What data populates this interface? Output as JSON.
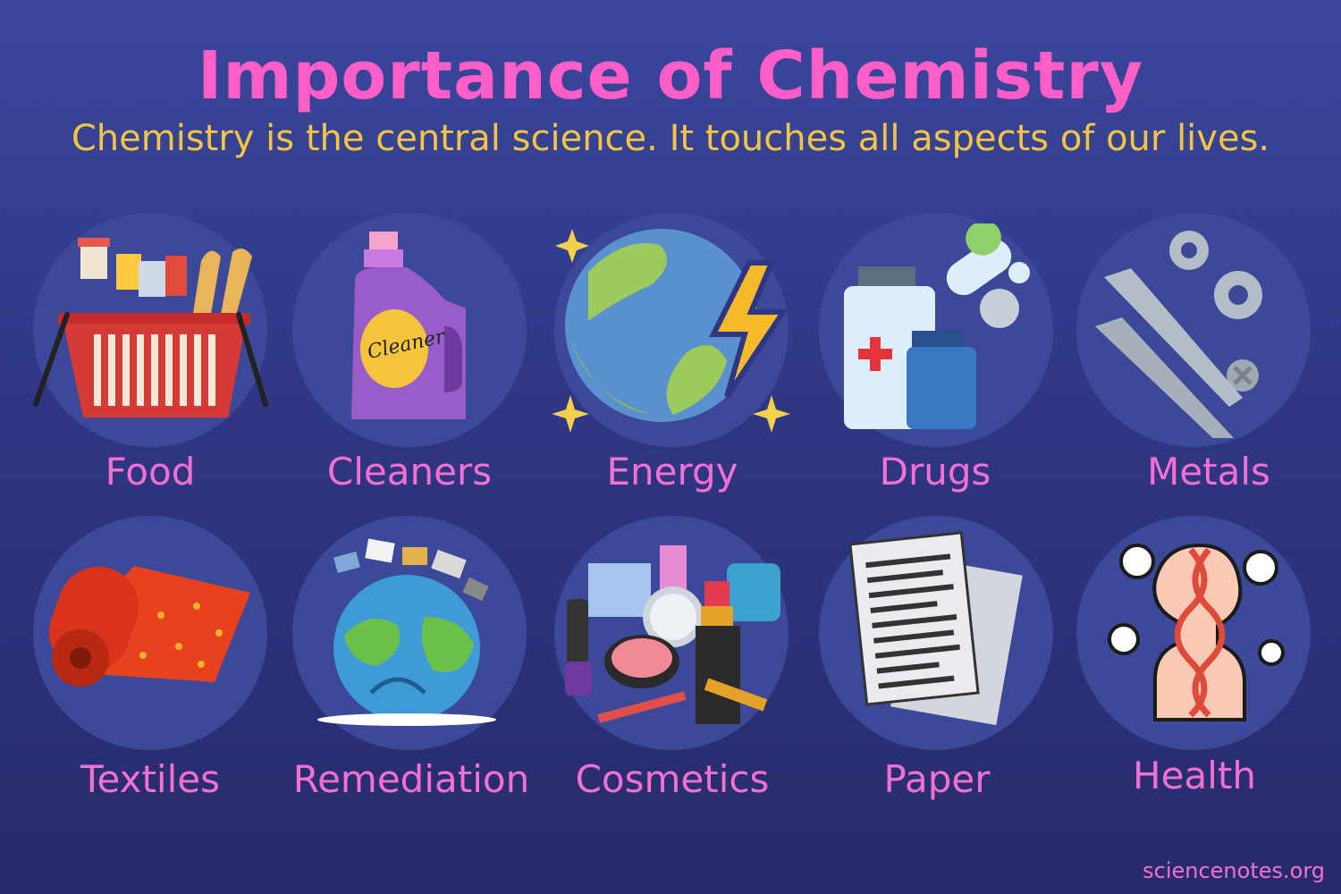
{
  "header": {
    "title": "Importance of Chemistry",
    "subtitle": "Chemistry is the central science. It touches all aspects of our lives."
  },
  "items": [
    {
      "label": "Food",
      "icon": "grocery-basket-icon"
    },
    {
      "label": "Cleaners",
      "icon": "cleaner-bottle-icon"
    },
    {
      "label": "Energy",
      "icon": "earth-lightning-icon"
    },
    {
      "label": "Drugs",
      "icon": "medicine-bottles-icon"
    },
    {
      "label": "Metals",
      "icon": "screws-gears-icon"
    },
    {
      "label": "Textiles",
      "icon": "fabric-roll-icon"
    },
    {
      "label": "Remediation",
      "icon": "polluted-earth-icon"
    },
    {
      "label": "Cosmetics",
      "icon": "makeup-items-icon"
    },
    {
      "label": "Paper",
      "icon": "paper-sheets-icon"
    },
    {
      "label": "Health",
      "icon": "human-dna-icon"
    }
  ],
  "bottle_text": "Cleaner",
  "footer": "sciencenotes.org",
  "colors": {
    "title": "#ff5ec8",
    "subtitle": "#f5c542",
    "label": "#f66fd2",
    "circle": "#3c4898"
  }
}
